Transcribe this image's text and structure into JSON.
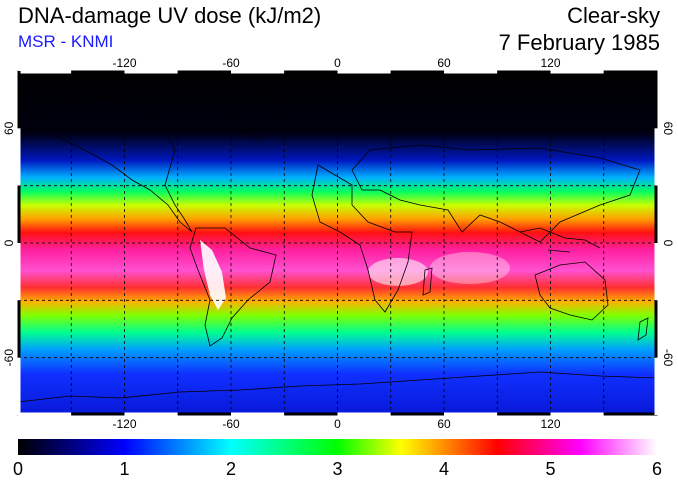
{
  "header": {
    "title": "DNA-damage UV dose (kJ/m2)",
    "subtitle": "MSR - KNMI",
    "condition": "Clear-sky",
    "date": "7 February 1985"
  },
  "map": {
    "lon_ticks": [
      "-120",
      "-60",
      "0",
      "60",
      "120"
    ],
    "lat_ticks_left": [
      "60",
      "0",
      "-60"
    ],
    "lat_ticks_right": [
      "60",
      "0",
      "-60"
    ],
    "lon_range": [
      -180,
      180
    ],
    "lat_range": [
      -90,
      90
    ],
    "gridlines": "dashed every 30 degrees"
  },
  "colorbar": {
    "labels": [
      "0",
      "1",
      "2",
      "3",
      "4",
      "5",
      "6"
    ],
    "min": 0,
    "max": 6,
    "colors": [
      "#000000",
      "#0000ff",
      "#00ffff",
      "#00ff00",
      "#ffff00",
      "#ff0000",
      "#ff00ff",
      "#ffffff"
    ]
  }
}
